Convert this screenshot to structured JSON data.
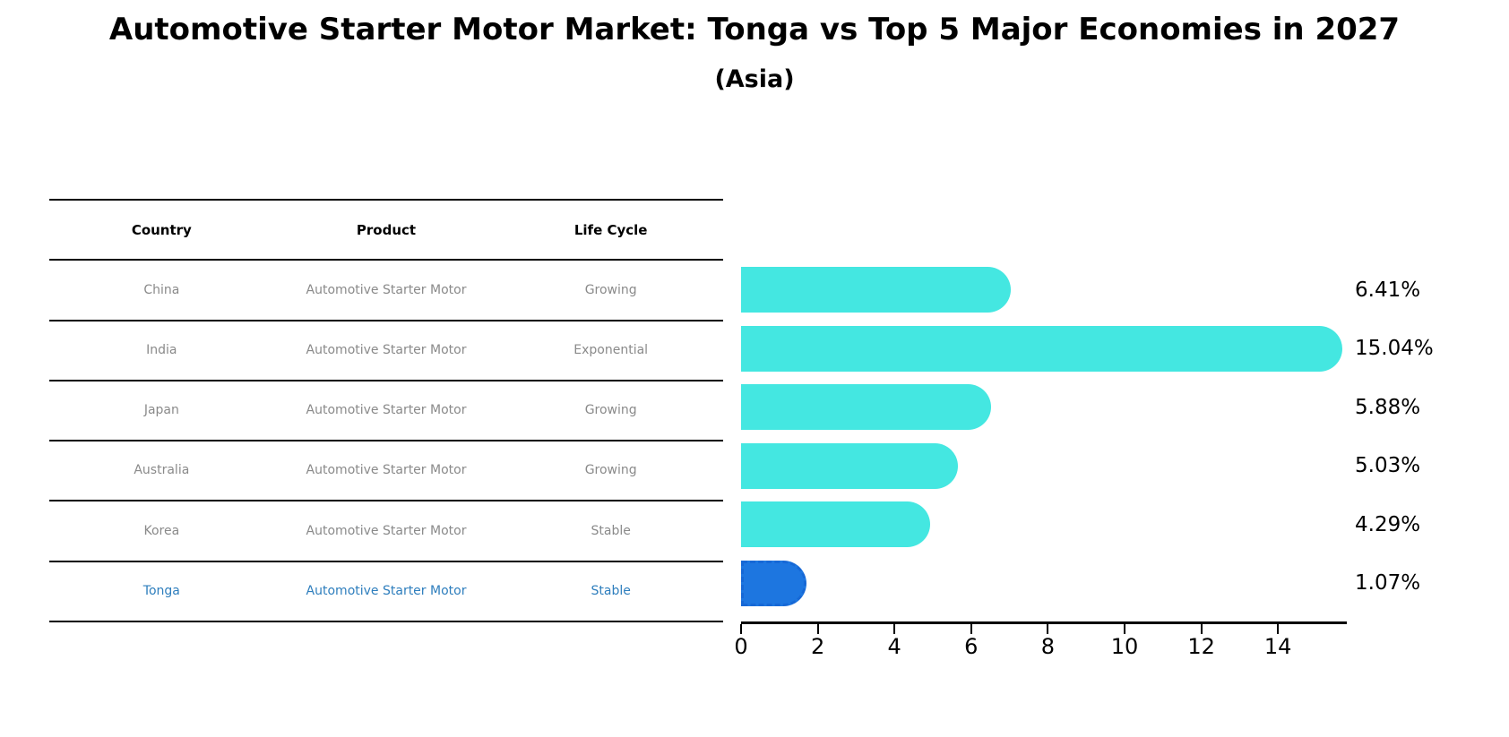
{
  "title": "Automotive Starter Motor Market: Tonga vs Top 5 Major Economies in 2027",
  "subtitle": "(Asia)",
  "table": {
    "headers": [
      "Country",
      "Product",
      "Life Cycle"
    ],
    "rows": [
      {
        "country": "China",
        "product": "Automotive Starter Motor",
        "life_cycle": "Growing",
        "highlighted": false
      },
      {
        "country": "India",
        "product": "Automotive Starter Motor",
        "life_cycle": "Exponential",
        "highlighted": false
      },
      {
        "country": "Japan",
        "product": "Automotive Starter Motor",
        "life_cycle": "Growing",
        "highlighted": false
      },
      {
        "country": "Australia",
        "product": "Automotive Starter Motor",
        "life_cycle": "Growing",
        "highlighted": false
      },
      {
        "country": "Korea",
        "product": "Automotive Starter Motor",
        "life_cycle": "Stable",
        "highlighted": false
      },
      {
        "country": "Tonga",
        "product": "Automotive Starter Motor",
        "life_cycle": "Stable",
        "highlighted": true
      }
    ]
  },
  "chart_data": {
    "type": "bar",
    "orientation": "horizontal",
    "title": "Automotive Starter Motor Market: Tonga vs Top 5 Major Economies in 2027 (Asia)",
    "categories": [
      "China",
      "India",
      "Japan",
      "Australia",
      "Korea",
      "Tonga"
    ],
    "values": [
      6.41,
      15.04,
      5.88,
      5.03,
      4.29,
      1.07
    ],
    "value_labels": [
      "6.41%",
      "15.04%",
      "5.88%",
      "5.03%",
      "4.29%",
      "1.07%"
    ],
    "highlight_index": 5,
    "x_ticks": [
      0,
      2,
      4,
      6,
      8,
      10,
      12,
      14
    ],
    "xlim": [
      0,
      15.8
    ],
    "xlabel": "",
    "ylabel": "",
    "grid": false,
    "legend": "none"
  },
  "colors": {
    "bar_color": "#44E7E1",
    "highlight_bar_color": "#1D76E0",
    "highlight_bar_border": "#1668D6",
    "highlight_text": "#2e7ebd",
    "table_text": "#8a8a8a",
    "axis_color": "#000000"
  }
}
